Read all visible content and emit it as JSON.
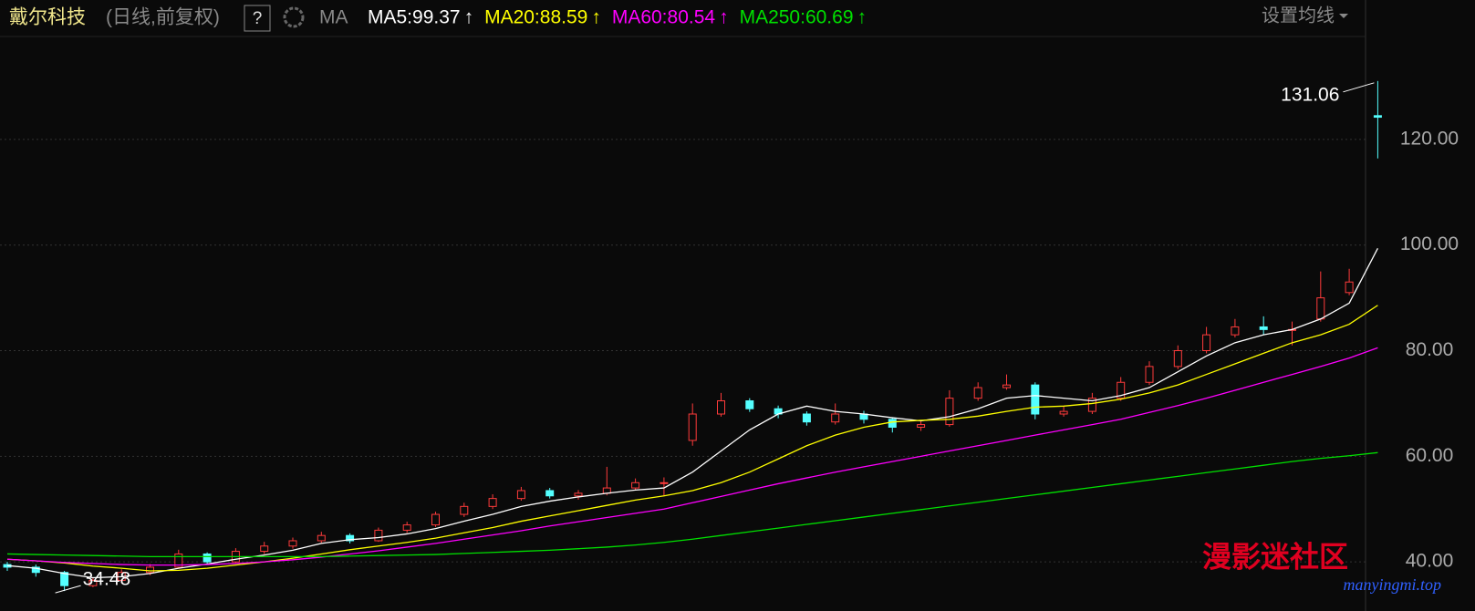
{
  "header": {
    "help": "?",
    "ma": "MA",
    "settings": "设置均线"
  },
  "chart_data": {
    "type": "candlestick",
    "title": "戴尔科技",
    "subtitle": "(日线,前复权)",
    "ylim": [
      30.7,
      146.4
    ],
    "yticks": [
      {
        "value": 40,
        "label": "40.00"
      },
      {
        "value": 60,
        "label": "60.00"
      },
      {
        "value": 80,
        "label": "80.00"
      },
      {
        "value": 100,
        "label": "100.00"
      },
      {
        "value": 120,
        "label": "120.00"
      }
    ],
    "grid": true,
    "up_color": "#ff3b3b",
    "down_color": "#54ffff",
    "max_label": "131.06",
    "min_label": "34.48",
    "open": [
      39.5,
      39,
      38,
      35.5,
      36.5,
      38,
      39,
      41.5,
      40,
      42,
      43,
      44,
      45,
      44,
      46,
      47,
      49,
      50.5,
      52,
      53.5,
      52.5,
      53,
      54,
      55,
      63,
      68,
      70.5,
      69,
      68,
      66.5,
      68,
      67,
      65.5,
      66,
      71,
      73,
      73.5,
      68,
      68.5,
      71,
      74,
      77,
      80,
      83,
      84.5,
      84,
      86,
      91,
      124.5
    ],
    "high": [
      40,
      39.5,
      38.3,
      37,
      38.6,
      39.6,
      42.3,
      41.8,
      42.6,
      43.8,
      44.6,
      45.7,
      45.4,
      46.5,
      47.6,
      49.5,
      51.2,
      52.8,
      54.2,
      54,
      53.6,
      58,
      55.8,
      56,
      70,
      72,
      71,
      69.6,
      68.5,
      70,
      68.6,
      67.4,
      66.8,
      72.5,
      74,
      75.5,
      74,
      69.5,
      72,
      75,
      78,
      81,
      84.5,
      86,
      86.5,
      85.5,
      95,
      95.5,
      131.06
    ],
    "low": [
      38.3,
      37.2,
      34.48,
      35.2,
      36,
      37.5,
      38.8,
      39.5,
      39.8,
      41.5,
      42.5,
      43.6,
      43.5,
      43.8,
      45.5,
      46.6,
      48.5,
      50,
      51.6,
      52,
      51.8,
      52.6,
      53.5,
      52.5,
      62,
      67.5,
      68.4,
      67.2,
      65.8,
      66,
      66.2,
      64.5,
      64.8,
      65.6,
      70.5,
      72.6,
      67,
      67.5,
      68,
      70.5,
      73.5,
      76.5,
      79.5,
      82.5,
      83,
      81,
      85.5,
      90.5,
      116.4
    ],
    "close": [
      39,
      38,
      35.5,
      36.5,
      38,
      39,
      41.5,
      40,
      42,
      43,
      44,
      45,
      44,
      46,
      47,
      49,
      50.5,
      52,
      53.5,
      52.5,
      53,
      54,
      55,
      55,
      68,
      70.5,
      69,
      68,
      66.5,
      68,
      67,
      65.5,
      66,
      71,
      73,
      73.5,
      68,
      68.5,
      71,
      74,
      77,
      80,
      83,
      84.5,
      84,
      84,
      90,
      93,
      124.2
    ],
    "series": [
      {
        "name": "MA5:99.37",
        "trend": "↑",
        "color": "#ffffff",
        "values": [
          39.3,
          38.8,
          37.8,
          37,
          37.2,
          37.8,
          38.8,
          39.6,
          40.5,
          41.3,
          42.2,
          43.5,
          44.2,
          44.6,
          45.3,
          46.3,
          47.7,
          49,
          50.5,
          51.5,
          52.3,
          53,
          53.6,
          54,
          57,
          61,
          65,
          68,
          69.5,
          68.5,
          68,
          67.3,
          66.7,
          67.5,
          69,
          71,
          71.5,
          71,
          70.5,
          71.5,
          73,
          76,
          79,
          81.5,
          83,
          84,
          86,
          89,
          99.37
        ]
      },
      {
        "name": "MA20:88.59",
        "trend": "↑",
        "color": "#ffff00",
        "values": [
          40.5,
          40.2,
          39.8,
          39.2,
          38.8,
          38.3,
          38.4,
          38.8,
          39.4,
          40,
          40.7,
          41.5,
          42.3,
          43,
          43.7,
          44.5,
          45.5,
          46.5,
          47.7,
          48.7,
          49.7,
          50.7,
          51.7,
          52.5,
          53.5,
          55,
          57,
          59.5,
          62,
          64,
          65.5,
          66.5,
          66.8,
          67,
          67.6,
          68.5,
          69.3,
          69.5,
          70,
          70.8,
          72,
          73.5,
          75.5,
          77.5,
          79.5,
          81.5,
          83,
          85,
          88.59
        ]
      },
      {
        "name": "MA60:80.54",
        "trend": "↑",
        "color": "#ff00ff",
        "values": [
          40.5,
          40.2,
          39.9,
          39.7,
          39.5,
          39.4,
          39.4,
          39.5,
          39.7,
          40,
          40.4,
          40.9,
          41.5,
          42.1,
          42.8,
          43.5,
          44.3,
          45.1,
          45.9,
          46.8,
          47.6,
          48.4,
          49.2,
          50,
          51.2,
          52.4,
          53.6,
          54.8,
          55.9,
          57,
          58,
          59,
          60,
          61,
          62,
          63,
          64,
          65,
          66,
          67,
          68.3,
          69.6,
          71,
          72.5,
          74,
          75.5,
          77,
          78.6,
          80.54
        ]
      },
      {
        "name": "MA250:60.69",
        "trend": "↑",
        "color": "#00e000",
        "values": [
          41.5,
          41.4,
          41.3,
          41.2,
          41.1,
          41,
          41,
          41,
          41,
          41,
          41,
          41,
          41.1,
          41.2,
          41.3,
          41.4,
          41.6,
          41.8,
          42,
          42.2,
          42.5,
          42.8,
          43.2,
          43.7,
          44.3,
          45,
          45.7,
          46.4,
          47.1,
          47.8,
          48.5,
          49.2,
          49.9,
          50.6,
          51.3,
          52,
          52.7,
          53.4,
          54.1,
          54.8,
          55.5,
          56.2,
          56.9,
          57.6,
          58.3,
          59,
          59.6,
          60.1,
          60.69
        ]
      }
    ]
  },
  "watermark": {
    "title": "漫影迷社区",
    "url": "manyingmi.top"
  }
}
